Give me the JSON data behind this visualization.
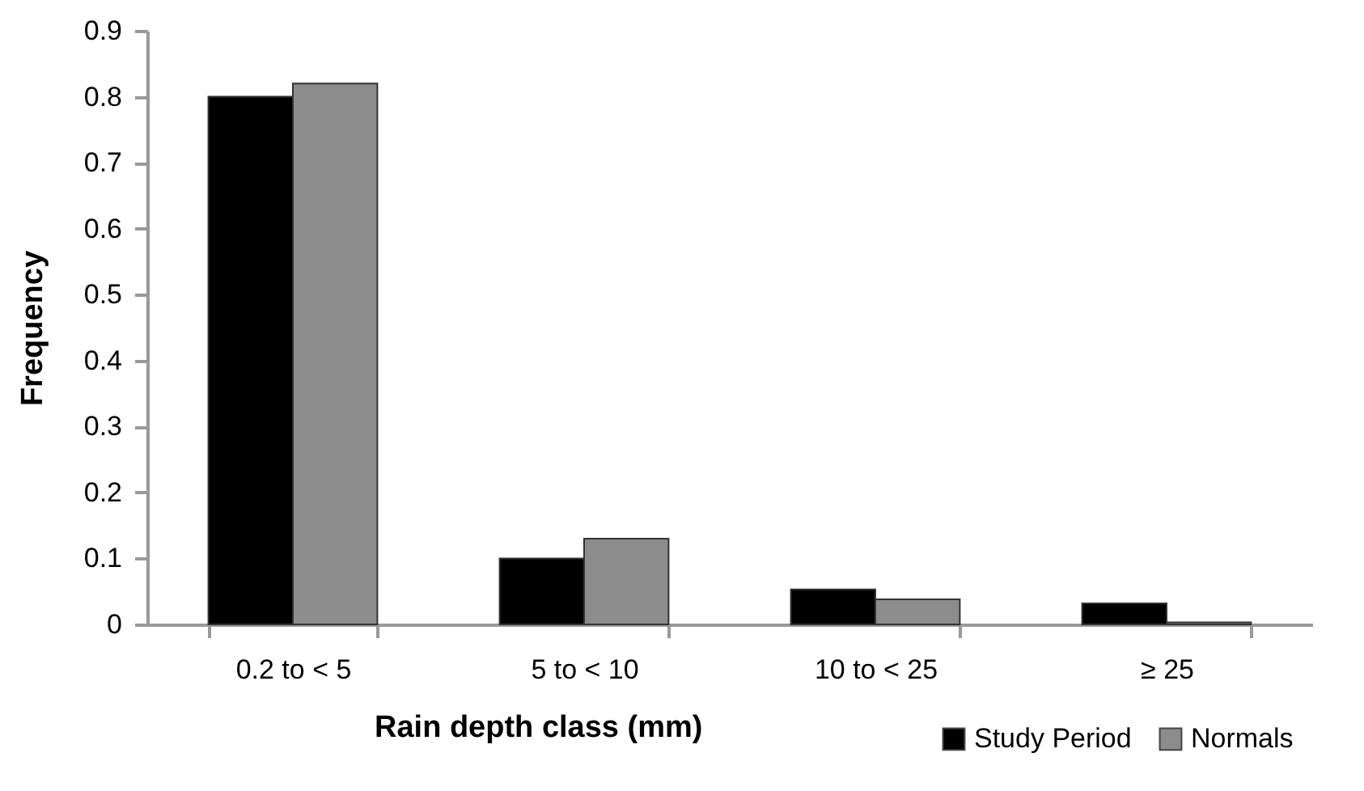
{
  "chart_data": {
    "type": "bar",
    "xlabel": "Rain depth class (mm)",
    "ylabel": "Frequency",
    "categories": [
      "0.2 to < 5",
      "5 to < 10",
      "10 to < 25",
      "≥ 25"
    ],
    "series": [
      {
        "name": "Study Period",
        "color": "#000000",
        "values": [
          0.8,
          0.1,
          0.053,
          0.032
        ]
      },
      {
        "name": "Normals",
        "color": "#8c8c8c",
        "values": [
          0.82,
          0.13,
          0.038,
          0.003
        ]
      }
    ],
    "ylim": [
      0,
      0.9
    ],
    "yticks": [
      0,
      0.1,
      0.2,
      0.3,
      0.4,
      0.5,
      0.6,
      0.7,
      0.8,
      0.9
    ],
    "grid": false,
    "legend": "bottom right"
  }
}
